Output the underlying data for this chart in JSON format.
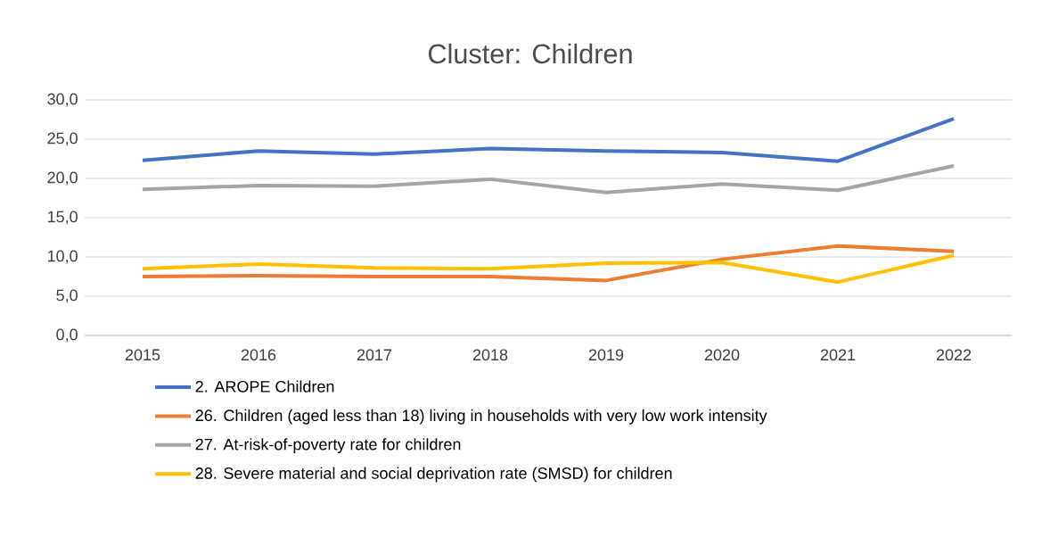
{
  "chart_data": {
    "type": "line",
    "title": "Cluster: Children",
    "categories": [
      "2015",
      "2016",
      "2017",
      "2018",
      "2019",
      "2020",
      "2021",
      "2022"
    ],
    "series": [
      {
        "name": "2. AROPE Children",
        "color": "#4472c4",
        "values": [
          22.3,
          23.5,
          23.1,
          23.8,
          23.5,
          23.3,
          22.2,
          27.6
        ]
      },
      {
        "name": "26. Children (aged less than 18) living in households with very low work intensity",
        "color": "#ed7d31",
        "values": [
          7.5,
          7.6,
          7.5,
          7.5,
          7.0,
          9.7,
          11.4,
          10.7
        ]
      },
      {
        "name": "27. At-risk-of-poverty rate for children",
        "color": "#a5a5a5",
        "values": [
          18.6,
          19.1,
          19.0,
          19.9,
          18.2,
          19.3,
          18.5,
          21.6
        ]
      },
      {
        "name": "28. Severe material and social deprivation rate (SMSD) for children",
        "color": "#ffc000",
        "values": [
          8.5,
          9.1,
          8.6,
          8.5,
          9.2,
          9.3,
          6.8,
          10.2
        ]
      }
    ],
    "ylim": [
      0,
      30
    ],
    "yticks": [
      {
        "value": 0,
        "label": "0,0"
      },
      {
        "value": 5,
        "label": "5,0"
      },
      {
        "value": 10,
        "label": "10,0"
      },
      {
        "value": 15,
        "label": "15,0"
      },
      {
        "value": 20,
        "label": "20,0"
      },
      {
        "value": 25,
        "label": "25,0"
      },
      {
        "value": 30,
        "label": "30,0"
      }
    ],
    "grid": "y",
    "legend": "bottom",
    "line_style": "solid"
  }
}
